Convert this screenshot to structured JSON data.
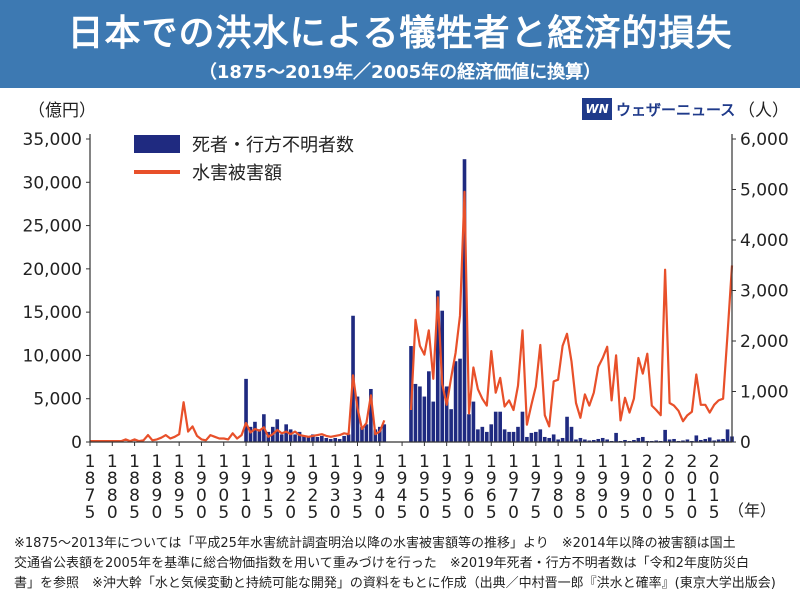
{
  "header": {
    "title": "日本での洪水による犠牲者と経済的損失",
    "subtitle": "（1875〜2019年／2005年の経済価値に換算）"
  },
  "brand": {
    "mark": "WN",
    "name": "ウェザーニュース"
  },
  "notes": [
    "※1875〜2013年については「平成25年水害統計調査明治以降の水害被害額等の推移」より　※2014年以降の被害額は国土",
    "交通省公表額を2005年を基準に総合物価指数を用いて重みづけを行った　※2019年死者・行方不明者数は「令和2年度防災白",
    "書」を参照　※沖大幹「水と気候変動と持続可能な開発」の資料をもとに作成（出典／中村晋一郎『洪水と確率』(東京大学出版会)"
  ],
  "colors": {
    "bar": "#1f2a80",
    "line": "#e8502a",
    "header": "#3d79b2"
  },
  "chart_data": {
    "type": "bar+line",
    "x_label": "（年）",
    "x_range": [
      1875,
      2019
    ],
    "x_ticks": [
      "1875",
      "1880",
      "1885",
      "1890",
      "1895",
      "1900",
      "1905",
      "1910",
      "1915",
      "1920",
      "1925",
      "1930",
      "1935",
      "1940",
      "1945",
      "1950",
      "1955",
      "1960",
      "1965",
      "1970",
      "1975",
      "1980",
      "1985",
      "1990",
      "1995",
      "2000",
      "2005",
      "2010",
      "2015"
    ],
    "y_left": {
      "label": "（億円）",
      "range": [
        0,
        35000
      ],
      "ticks": [
        "0",
        "5,000",
        "10,000",
        "15,000",
        "20,000",
        "25,000",
        "30,000",
        "35,000"
      ]
    },
    "y_right": {
      "label": "（人）",
      "range": [
        0,
        6000
      ],
      "ticks": [
        "0",
        "1,000",
        "2,000",
        "3,000",
        "4,000",
        "5,000",
        "6,000"
      ]
    },
    "legend": [
      "死者・行方不明者数",
      "水害被害額"
    ],
    "series": [
      {
        "name": "死者・行方不明者数",
        "type": "bar",
        "axis": "right",
        "points": [
          [
            1910,
            1250
          ],
          [
            1911,
            300
          ],
          [
            1912,
            400
          ],
          [
            1913,
            250
          ],
          [
            1914,
            550
          ],
          [
            1915,
            200
          ],
          [
            1916,
            300
          ],
          [
            1917,
            450
          ],
          [
            1918,
            150
          ],
          [
            1919,
            350
          ],
          [
            1920,
            250
          ],
          [
            1921,
            150
          ],
          [
            1922,
            200
          ],
          [
            1923,
            120
          ],
          [
            1924,
            100
          ],
          [
            1925,
            150
          ],
          [
            1926,
            100
          ],
          [
            1927,
            120
          ],
          [
            1928,
            80
          ],
          [
            1929,
            60
          ],
          [
            1930,
            80
          ],
          [
            1931,
            60
          ],
          [
            1932,
            120
          ],
          [
            1933,
            150
          ],
          [
            1934,
            2500
          ],
          [
            1935,
            900
          ],
          [
            1936,
            300
          ],
          [
            1937,
            350
          ],
          [
            1938,
            1050
          ],
          [
            1939,
            250
          ],
          [
            1940,
            300
          ],
          [
            1941,
            350
          ],
          [
            1947,
            1900
          ],
          [
            1948,
            1150
          ],
          [
            1949,
            1100
          ],
          [
            1950,
            900
          ],
          [
            1951,
            1400
          ],
          [
            1952,
            800
          ],
          [
            1953,
            3000
          ],
          [
            1954,
            2600
          ],
          [
            1955,
            1100
          ],
          [
            1956,
            650
          ],
          [
            1957,
            1600
          ],
          [
            1958,
            1650
          ],
          [
            1959,
            5600
          ],
          [
            1960,
            550
          ],
          [
            1961,
            800
          ],
          [
            1962,
            250
          ],
          [
            1963,
            300
          ],
          [
            1964,
            200
          ],
          [
            1965,
            350
          ],
          [
            1966,
            600
          ],
          [
            1967,
            600
          ],
          [
            1968,
            250
          ],
          [
            1969,
            200
          ],
          [
            1970,
            200
          ],
          [
            1971,
            300
          ],
          [
            1972,
            600
          ],
          [
            1973,
            100
          ],
          [
            1974,
            180
          ],
          [
            1975,
            200
          ],
          [
            1976,
            250
          ],
          [
            1977,
            100
          ],
          [
            1978,
            80
          ],
          [
            1979,
            150
          ],
          [
            1980,
            50
          ],
          [
            1981,
            80
          ],
          [
            1982,
            500
          ],
          [
            1983,
            300
          ],
          [
            1984,
            50
          ],
          [
            1985,
            80
          ],
          [
            1986,
            50
          ],
          [
            1987,
            30
          ],
          [
            1988,
            40
          ],
          [
            1989,
            60
          ],
          [
            1990,
            80
          ],
          [
            1991,
            50
          ],
          [
            1992,
            20
          ],
          [
            1993,
            180
          ],
          [
            1994,
            20
          ],
          [
            1995,
            40
          ],
          [
            1996,
            20
          ],
          [
            1997,
            40
          ],
          [
            1998,
            80
          ],
          [
            1999,
            100
          ],
          [
            2000,
            20
          ],
          [
            2001,
            20
          ],
          [
            2002,
            30
          ],
          [
            2003,
            20
          ],
          [
            2004,
            240
          ],
          [
            2005,
            50
          ],
          [
            2006,
            60
          ],
          [
            2007,
            20
          ],
          [
            2008,
            30
          ],
          [
            2009,
            50
          ],
          [
            2010,
            20
          ],
          [
            2011,
            130
          ],
          [
            2012,
            40
          ],
          [
            2013,
            60
          ],
          [
            2014,
            90
          ],
          [
            2015,
            30
          ],
          [
            2016,
            50
          ],
          [
            2017,
            60
          ],
          [
            2018,
            250
          ],
          [
            2019,
            110
          ]
        ]
      },
      {
        "name": "水害被害額",
        "type": "line",
        "axis": "left",
        "points": [
          [
            1875,
            100
          ],
          [
            1876,
            100
          ],
          [
            1877,
            100
          ],
          [
            1878,
            100
          ],
          [
            1879,
            100
          ],
          [
            1880,
            100
          ],
          [
            1881,
            100
          ],
          [
            1882,
            100
          ],
          [
            1883,
            300
          ],
          [
            1884,
            100
          ],
          [
            1885,
            300
          ],
          [
            1886,
            100
          ],
          [
            1887,
            200
          ],
          [
            1888,
            800
          ],
          [
            1889,
            200
          ],
          [
            1890,
            300
          ],
          [
            1891,
            500
          ],
          [
            1892,
            800
          ],
          [
            1893,
            400
          ],
          [
            1894,
            600
          ],
          [
            1895,
            900
          ],
          [
            1896,
            4600
          ],
          [
            1897,
            1200
          ],
          [
            1898,
            1800
          ],
          [
            1899,
            700
          ],
          [
            1900,
            300
          ],
          [
            1901,
            200
          ],
          [
            1902,
            800
          ],
          [
            1903,
            600
          ],
          [
            1904,
            400
          ],
          [
            1905,
            400
          ],
          [
            1906,
            300
          ],
          [
            1907,
            1000
          ],
          [
            1908,
            400
          ],
          [
            1909,
            800
          ],
          [
            1910,
            2200
          ],
          [
            1911,
            1100
          ],
          [
            1912,
            1500
          ],
          [
            1913,
            1300
          ],
          [
            1914,
            1700
          ],
          [
            1915,
            600
          ],
          [
            1916,
            900
          ],
          [
            1917,
            1400
          ],
          [
            1918,
            1000
          ],
          [
            1919,
            1200
          ],
          [
            1920,
            900
          ],
          [
            1921,
            1200
          ],
          [
            1922,
            800
          ],
          [
            1923,
            700
          ],
          [
            1924,
            600
          ],
          [
            1925,
            700
          ],
          [
            1926,
            800
          ],
          [
            1927,
            900
          ],
          [
            1928,
            700
          ],
          [
            1929,
            600
          ],
          [
            1930,
            700
          ],
          [
            1931,
            800
          ],
          [
            1932,
            1000
          ],
          [
            1933,
            900
          ],
          [
            1934,
            7700
          ],
          [
            1935,
            3900
          ],
          [
            1936,
            1500
          ],
          [
            1937,
            2200
          ],
          [
            1938,
            5400
          ],
          [
            1939,
            900
          ],
          [
            1940,
            1200
          ],
          [
            1941,
            2500
          ],
          [
            1947,
            3700
          ],
          [
            1948,
            14100
          ],
          [
            1949,
            11100
          ],
          [
            1950,
            10100
          ],
          [
            1951,
            12900
          ],
          [
            1952,
            7300
          ],
          [
            1953,
            16700
          ],
          [
            1954,
            6700
          ],
          [
            1955,
            4300
          ],
          [
            1956,
            7400
          ],
          [
            1957,
            10300
          ],
          [
            1958,
            14600
          ],
          [
            1959,
            28900
          ],
          [
            1960,
            3300
          ],
          [
            1961,
            8600
          ],
          [
            1962,
            6100
          ],
          [
            1963,
            5000
          ],
          [
            1964,
            4200
          ],
          [
            1965,
            10500
          ],
          [
            1966,
            5700
          ],
          [
            1967,
            7400
          ],
          [
            1968,
            4100
          ],
          [
            1969,
            4800
          ],
          [
            1970,
            3700
          ],
          [
            1971,
            6500
          ],
          [
            1972,
            12900
          ],
          [
            1973,
            2000
          ],
          [
            1974,
            4300
          ],
          [
            1975,
            6400
          ],
          [
            1976,
            11200
          ],
          [
            1977,
            3100
          ],
          [
            1978,
            1800
          ],
          [
            1979,
            7000
          ],
          [
            1980,
            7200
          ],
          [
            1981,
            11100
          ],
          [
            1982,
            12500
          ],
          [
            1983,
            9300
          ],
          [
            1984,
            4500
          ],
          [
            1985,
            2800
          ],
          [
            1986,
            5500
          ],
          [
            1987,
            4200
          ],
          [
            1988,
            5700
          ],
          [
            1989,
            8700
          ],
          [
            1990,
            9700
          ],
          [
            1991,
            11000
          ],
          [
            1992,
            4800
          ],
          [
            1993,
            10000
          ],
          [
            1994,
            2500
          ],
          [
            1995,
            5100
          ],
          [
            1996,
            3400
          ],
          [
            1997,
            5000
          ],
          [
            1998,
            9700
          ],
          [
            1999,
            7900
          ],
          [
            2000,
            10200
          ],
          [
            2001,
            4200
          ],
          [
            2002,
            3700
          ],
          [
            2003,
            3100
          ],
          [
            2004,
            19900
          ],
          [
            2005,
            4500
          ],
          [
            2006,
            4200
          ],
          [
            2007,
            3600
          ],
          [
            2008,
            2400
          ],
          [
            2009,
            3100
          ],
          [
            2010,
            3500
          ],
          [
            2011,
            7800
          ],
          [
            2012,
            4300
          ],
          [
            2013,
            4300
          ],
          [
            2014,
            3400
          ],
          [
            2015,
            4300
          ],
          [
            2016,
            4800
          ],
          [
            2017,
            5000
          ],
          [
            2018,
            12400
          ],
          [
            2019,
            20400
          ]
        ]
      }
    ]
  }
}
